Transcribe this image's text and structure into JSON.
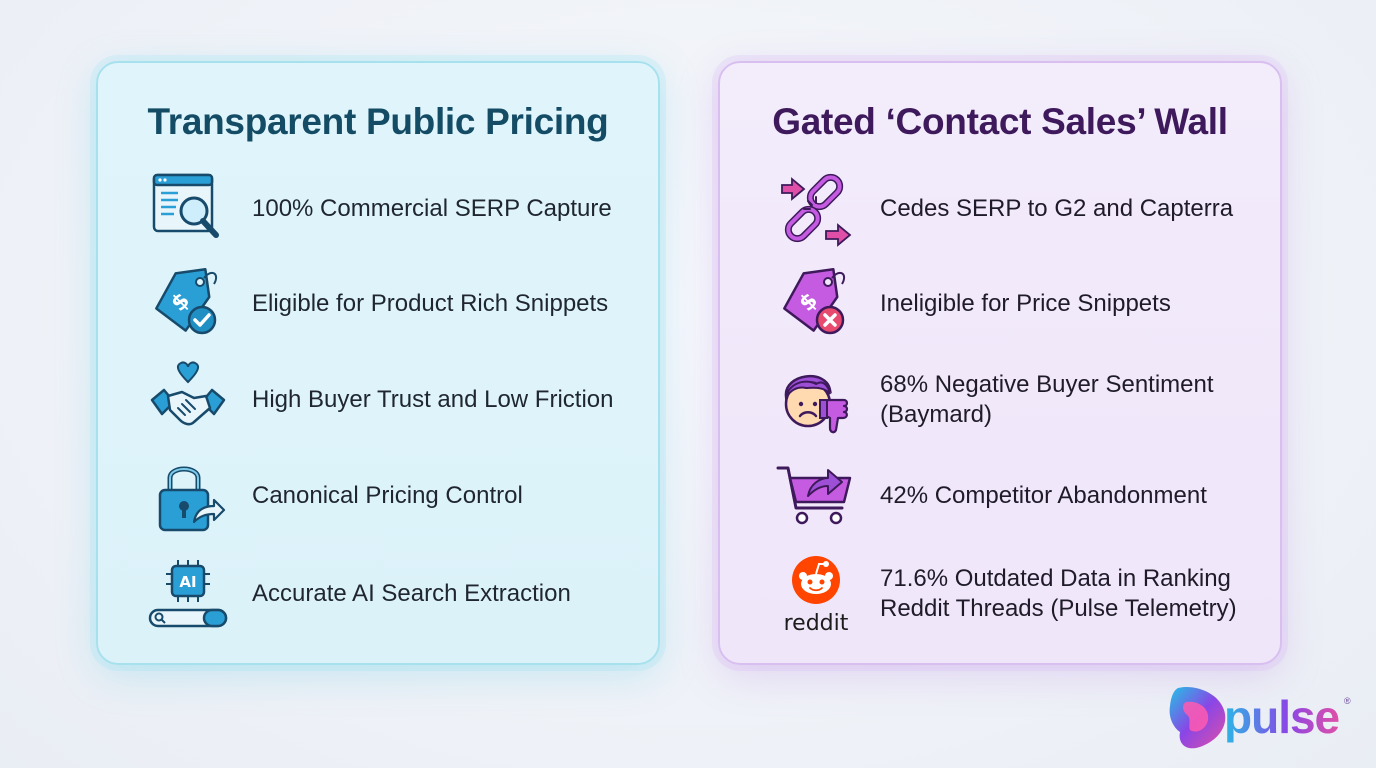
{
  "left_panel": {
    "title": "Transparent Public Pricing",
    "items": [
      {
        "label": "100% Commercial SERP Capture",
        "icon": "browser-magnifier-icon"
      },
      {
        "label": "Eligible for Product Rich Snippets",
        "icon": "price-tag-check-icon"
      },
      {
        "label": "High Buyer Trust and Low Friction",
        "icon": "handshake-heart-icon"
      },
      {
        "label": "Canonical Pricing Control",
        "icon": "padlock-arrow-icon"
      },
      {
        "label": "Accurate AI Search Extraction",
        "icon": "ai-chip-search-icon"
      }
    ]
  },
  "right_panel": {
    "title": "Gated ‘Contact Sales’ Wall",
    "items": [
      {
        "label": "Cedes SERP to G2 and Capterra",
        "icon": "broken-link-icon"
      },
      {
        "label": "Ineligible for Price Snippets",
        "icon": "price-tag-x-icon"
      },
      {
        "label": "68% Negative Buyer Sentiment (Baymard)",
        "icon": "sad-thumbs-down-icon"
      },
      {
        "label": "42% Competitor Abandonment",
        "icon": "cart-arrow-icon"
      },
      {
        "label": "71.6% Outdated Data in Ranking Reddit Threads (Pulse Telemetry)",
        "icon": "reddit-logo-icon",
        "icon_text": "reddit"
      }
    ]
  },
  "logo": {
    "text": "pulse",
    "reg": "®"
  },
  "colors": {
    "left_accent": "#1f8fc4",
    "left_title": "#144c66",
    "right_accent": "#b04ad6",
    "right_title": "#3e1a5c",
    "reddit_orange": "#ff4500"
  }
}
